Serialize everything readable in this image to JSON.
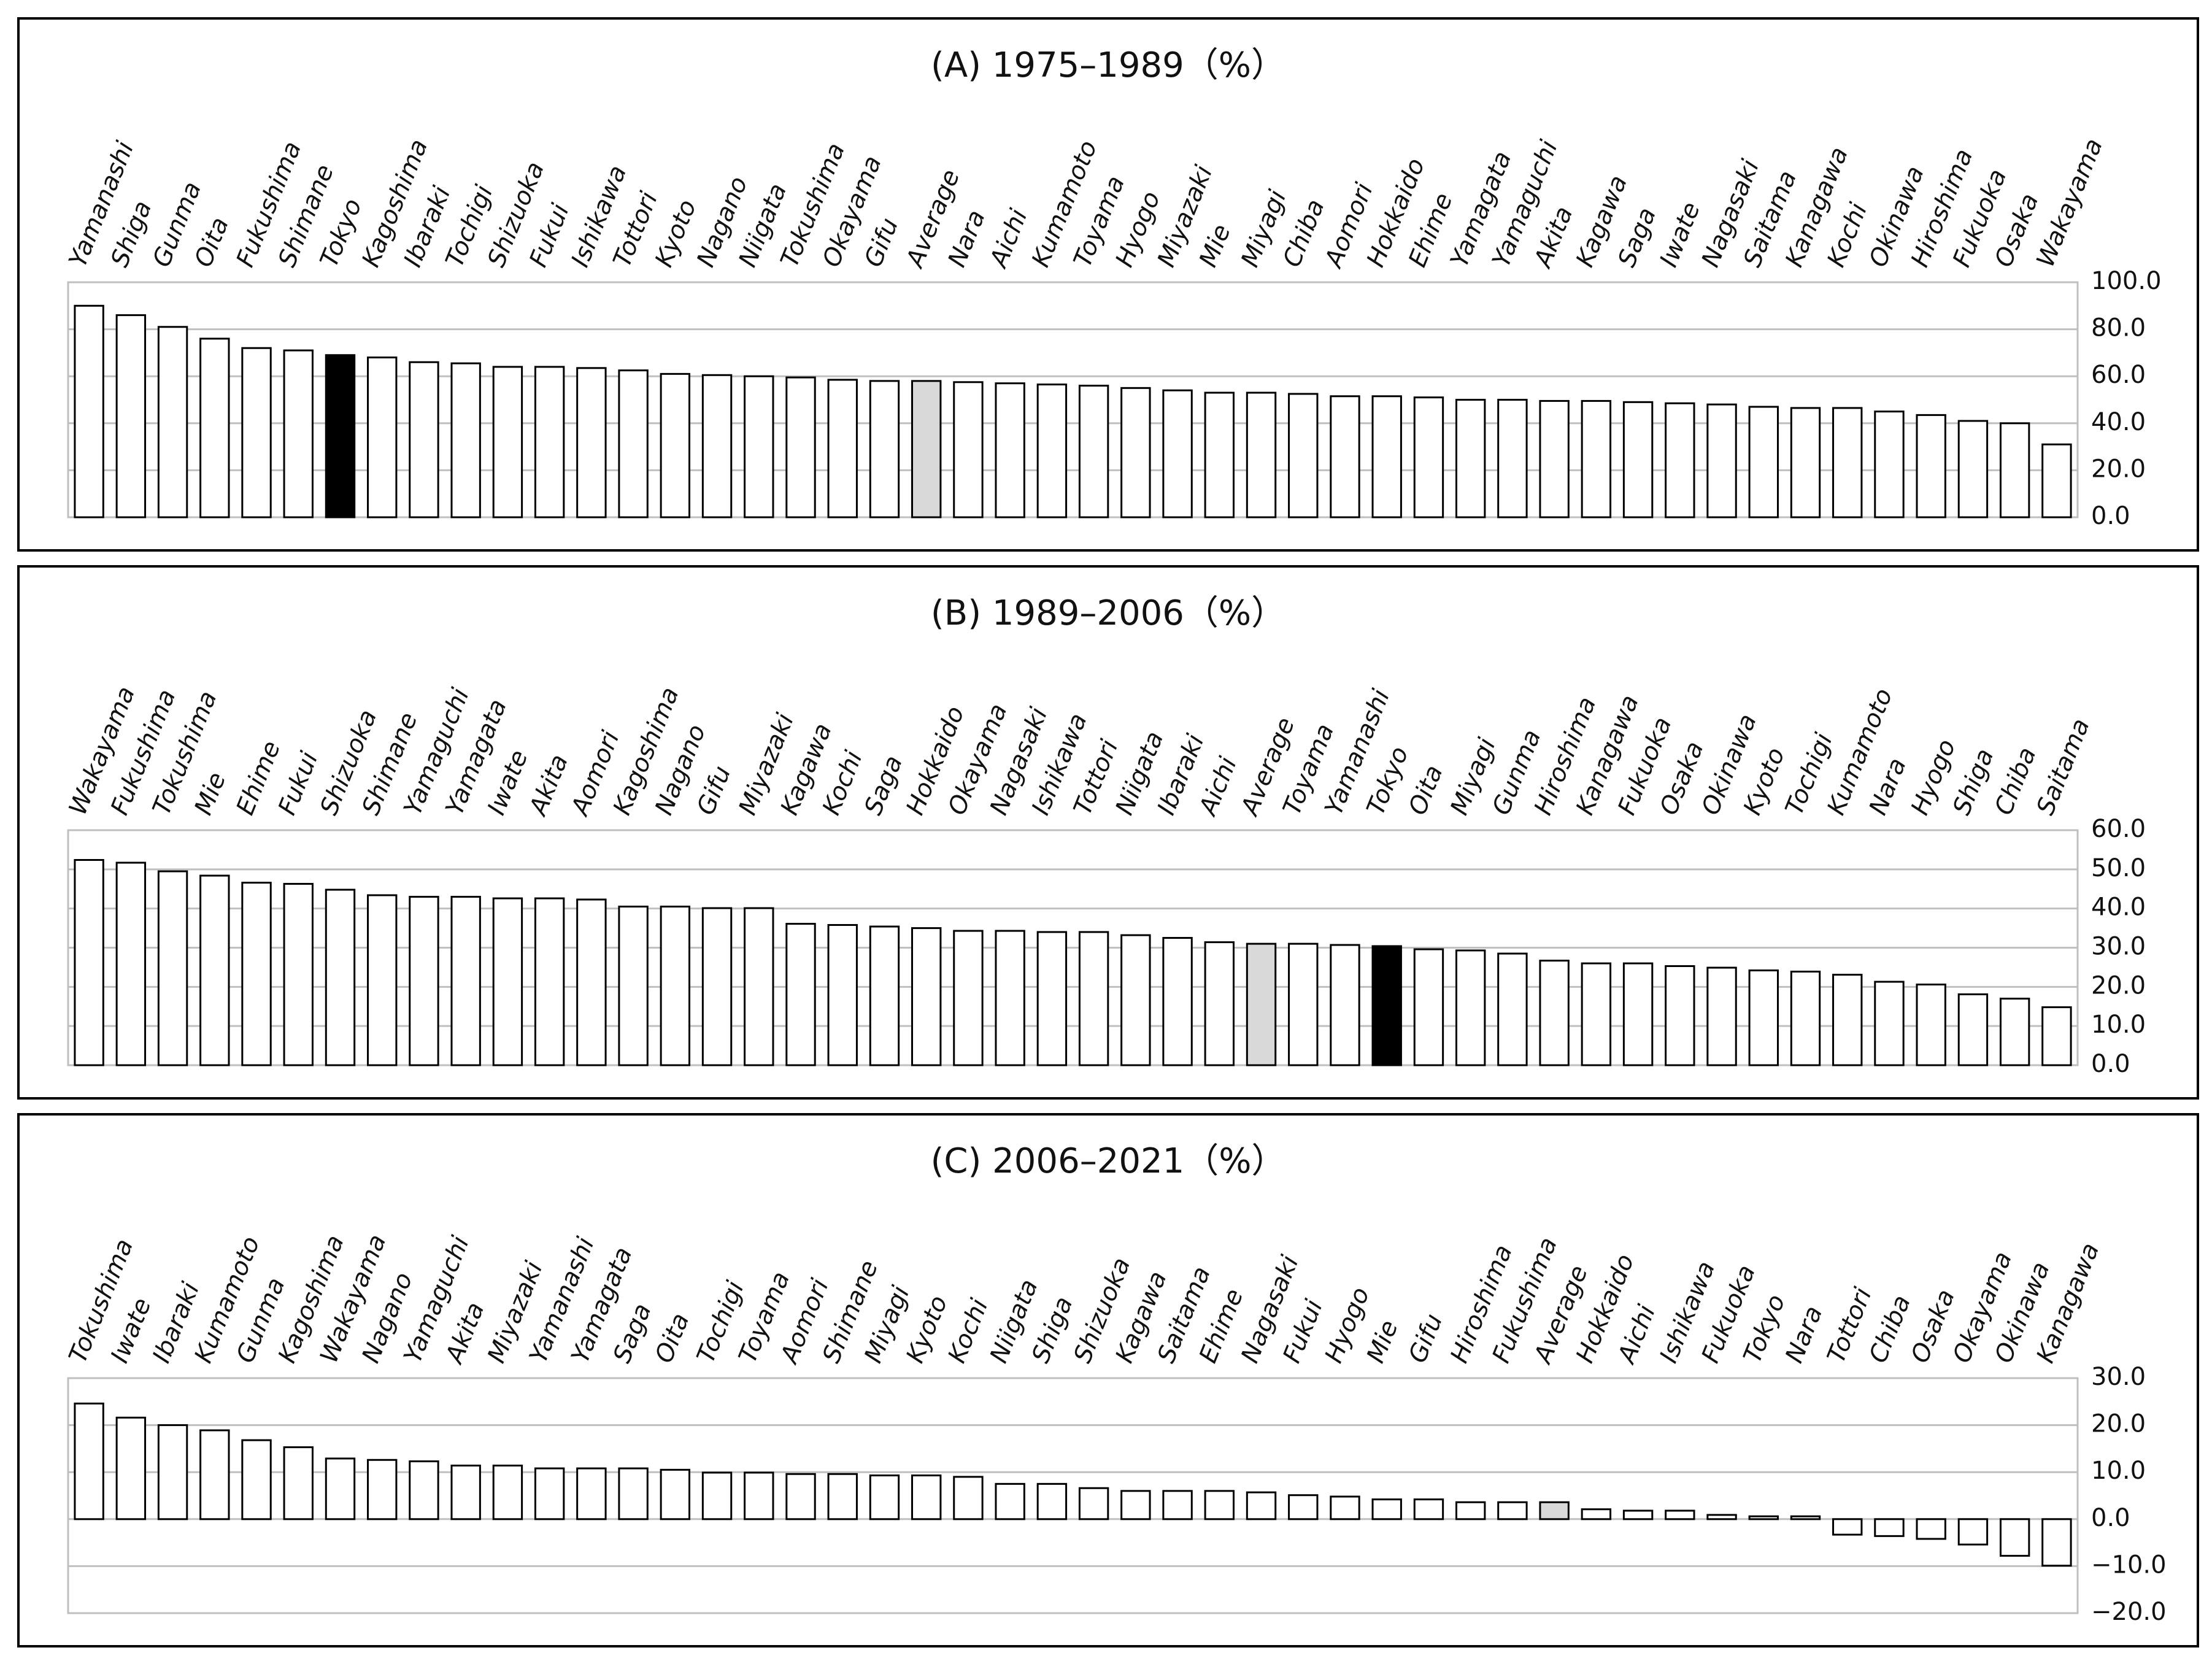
{
  "chart_data": [
    {
      "type": "bar",
      "title": "(A) 1975–1989（%）",
      "categories": [
        "Yamanashi",
        "Shiga",
        "Gunma",
        "Oita",
        "Fukushima",
        "Shimane",
        "Tokyo",
        "Kagoshima",
        "Ibaraki",
        "Tochigi",
        "Shizuoka",
        "Fukui",
        "Ishikawa",
        "Tottori",
        "Kyoto",
        "Nagano",
        "Niigata",
        "Tokushima",
        "Okayama",
        "Gifu",
        "Average",
        "Nara",
        "Aichi",
        "Kumamoto",
        "Toyama",
        "Hyogo",
        "Miyazaki",
        "Mie",
        "Miyagi",
        "Chiba",
        "Aomori",
        "Hokkaido",
        "Ehime",
        "Yamagata",
        "Yamaguchi",
        "Akita",
        "Kagawa",
        "Saga",
        "Iwate",
        "Nagasaki",
        "Saitama",
        "Kanagawa",
        "Kochi",
        "Okinawa",
        "Hiroshima",
        "Fukuoka",
        "Osaka",
        "Wakayama"
      ],
      "values": [
        90,
        86,
        81,
        76,
        72,
        71,
        69,
        68,
        66,
        65.5,
        64,
        64,
        63.5,
        62.5,
        61,
        60.5,
        60,
        59.5,
        58.5,
        58,
        58,
        57.5,
        57,
        56.5,
        56,
        55,
        54,
        53,
        53,
        52.5,
        51.5,
        51.5,
        51,
        50,
        50,
        49.5,
        49.5,
        49,
        48.5,
        48,
        47,
        46.5,
        46.5,
        45,
        43.5,
        41,
        40,
        31
      ],
      "color": "#ffffff",
      "highlight_colors": {
        "Tokyo": "#000000",
        "Average": "#d9d9d9"
      },
      "ylim": [
        0,
        100
      ],
      "yticks": [
        {
          "value": 0,
          "label": "0.0"
        },
        {
          "value": 20,
          "label": "20.0"
        },
        {
          "value": 40,
          "label": "40.0"
        },
        {
          "value": 60,
          "label": "60.0"
        },
        {
          "value": 80,
          "label": "80.0"
        },
        {
          "value": 100,
          "label": "100.0"
        }
      ],
      "grid": true
    },
    {
      "type": "bar",
      "title": "(B) 1989–2006（%）",
      "categories": [
        "Wakayama",
        "Fukushima",
        "Tokushima",
        "Mie",
        "Ehime",
        "Fukui",
        "Shizuoka",
        "Shimane",
        "Yamaguchi",
        "Yamagata",
        "Iwate",
        "Akita",
        "Aomori",
        "Kagoshima",
        "Nagano",
        "Gifu",
        "Miyazaki",
        "Kagawa",
        "Kochi",
        "Saga",
        "Hokkaido",
        "Okayama",
        "Nagasaki",
        "Ishikawa",
        "Tottori",
        "Niigata",
        "Ibaraki",
        "Aichi",
        "Average",
        "Toyama",
        "Yamanashi",
        "Tokyo",
        "Oita",
        "Miyagi",
        "Gunma",
        "Hiroshima",
        "Kanagawa",
        "Fukuoka",
        "Osaka",
        "Okinawa",
        "Kyoto",
        "Tochigi",
        "Kumamoto",
        "Nara",
        "Hyogo",
        "Shiga",
        "Chiba",
        "Saitama"
      ],
      "values": [
        52.4,
        51.7,
        49.5,
        48.4,
        46.6,
        46.3,
        44.8,
        43.4,
        43,
        43,
        42.6,
        42.6,
        42.3,
        40.5,
        40.5,
        40.1,
        40.1,
        36.1,
        35.8,
        35.4,
        35,
        34.3,
        34.3,
        34,
        34,
        33.2,
        32.5,
        31.4,
        31,
        31,
        30.7,
        30.4,
        29.6,
        29.3,
        28.5,
        26.7,
        26,
        26,
        25.3,
        24.9,
        24.2,
        23.9,
        23.1,
        21.3,
        20.6,
        18.1,
        17,
        14.8
      ],
      "color": "#ffffff",
      "highlight_colors": {
        "Tokyo": "#000000",
        "Average": "#d9d9d9"
      },
      "ylim": [
        0,
        60
      ],
      "yticks": [
        {
          "value": 0,
          "label": "0.0"
        },
        {
          "value": 10,
          "label": "10.0"
        },
        {
          "value": 20,
          "label": "20.0"
        },
        {
          "value": 30,
          "label": "30.0"
        },
        {
          "value": 40,
          "label": "40.0"
        },
        {
          "value": 50,
          "label": "50.0"
        },
        {
          "value": 60,
          "label": "60.0"
        }
      ],
      "grid": true
    },
    {
      "type": "bar",
      "title": "(C) 2006–2021（%）",
      "categories": [
        "Tokushima",
        "Iwate",
        "Ibaraki",
        "Kumamoto",
        "Gunma",
        "Kagoshima",
        "Wakayama",
        "Nagano",
        "Yamaguchi",
        "Akita",
        "Miyazaki",
        "Yamanashi",
        "Yamagata",
        "Saga",
        "Oita",
        "Tochigi",
        "Toyama",
        "Aomori",
        "Shimane",
        "Miyagi",
        "Kyoto",
        "Kochi",
        "Niigata",
        "Shiga",
        "Shizuoka",
        "Kagawa",
        "Saitama",
        "Ehime",
        "Nagasaki",
        "Fukui",
        "Hyogo",
        "Mie",
        "Gifu",
        "Hiroshima",
        "Fukushima",
        "Average",
        "Hokkaido",
        "Aichi",
        "Ishikawa",
        "Fukuoka",
        "Tokyo",
        "Nara",
        "Tottori",
        "Chiba",
        "Osaka",
        "Okayama",
        "Okinawa",
        "Kanagawa"
      ],
      "values": [
        24.6,
        21.6,
        20,
        18.9,
        16.8,
        15.3,
        12.9,
        12.6,
        12.3,
        11.4,
        11.4,
        10.8,
        10.8,
        10.8,
        10.5,
        9.9,
        9.9,
        9.6,
        9.6,
        9.3,
        9.3,
        9,
        7.5,
        7.5,
        6.6,
        6,
        6,
        6,
        5.7,
        5.1,
        4.8,
        4.2,
        4.2,
        3.6,
        3.6,
        3.6,
        2.1,
        1.8,
        1.8,
        0.9,
        0.6,
        0.6,
        -3.3,
        -3.6,
        -4.2,
        -5.4,
        -7.8,
        -9.9
      ],
      "color": "#ffffff",
      "highlight_colors": {
        "Average": "#d9d9d9"
      },
      "ylim": [
        -20,
        30
      ],
      "yticks": [
        {
          "value": -20,
          "label": "−20.0"
        },
        {
          "value": -10,
          "label": "−10.0"
        },
        {
          "value": 0,
          "label": "0.0"
        },
        {
          "value": 10,
          "label": "10.0"
        },
        {
          "value": 20,
          "label": "20.0"
        },
        {
          "value": 30,
          "label": "30.0"
        }
      ],
      "grid": true
    }
  ]
}
